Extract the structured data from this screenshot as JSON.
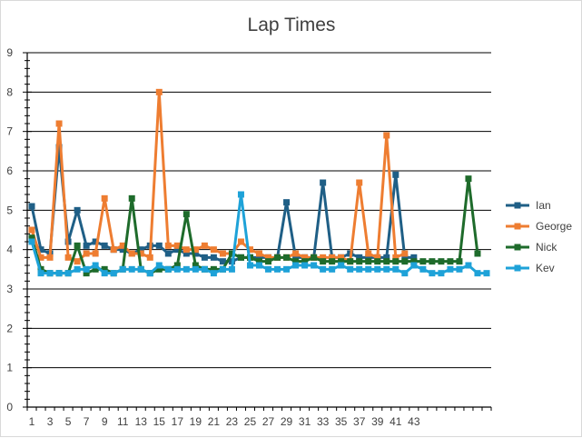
{
  "chart_data": {
    "type": "line",
    "title": "Lap Times",
    "xlabel": "",
    "ylabel": "",
    "ylim": [
      0,
      9
    ],
    "yticks": [
      "0",
      "1",
      "2",
      "3",
      "4",
      "5",
      "6",
      "7",
      "8",
      "9"
    ],
    "xticks": [
      "1",
      "3",
      "5",
      "7",
      "9",
      "11",
      "13",
      "15",
      "17",
      "19",
      "21",
      "23",
      "25",
      "27",
      "29",
      "31",
      "33",
      "35",
      "37",
      "39",
      "41",
      "43"
    ],
    "x_count": 51,
    "grid": "horizontal",
    "legend_position": "right",
    "series": [
      {
        "name": "Ian",
        "color": "#1f5f86",
        "values": [
          5.1,
          4.0,
          3.9,
          6.6,
          4.2,
          5.0,
          4.1,
          4.2,
          4.1,
          4.0,
          4.0,
          3.9,
          4.0,
          4.1,
          4.1,
          3.9,
          4.0,
          3.9,
          3.9,
          3.8,
          3.8,
          3.7,
          3.7,
          3.8,
          3.8,
          3.8,
          3.8,
          3.8,
          5.2,
          3.8,
          3.8,
          3.8,
          5.7,
          3.8,
          3.8,
          3.9,
          3.8,
          3.8,
          3.8,
          3.8,
          5.9,
          3.8,
          3.8
        ]
      },
      {
        "name": "George",
        "color": "#ee7d31",
        "values": [
          4.5,
          3.8,
          3.8,
          7.2,
          3.8,
          3.7,
          3.9,
          3.9,
          5.3,
          4.0,
          4.1,
          3.9,
          3.9,
          3.8,
          8.0,
          4.1,
          4.1,
          4.0,
          4.0,
          4.1,
          4.0,
          3.9,
          3.9,
          4.2,
          4.0,
          3.9,
          3.8,
          3.8,
          3.8,
          3.9,
          3.8,
          3.8,
          3.8,
          3.8,
          3.8,
          3.7,
          5.7,
          3.9,
          3.8,
          6.9,
          3.8,
          3.9
        ]
      },
      {
        "name": "Nick",
        "color": "#1e6b2b",
        "values": [
          4.3,
          3.5,
          3.4,
          3.4,
          3.4,
          4.1,
          3.4,
          3.5,
          3.5,
          3.4,
          3.5,
          5.3,
          3.5,
          3.4,
          3.5,
          3.5,
          3.6,
          4.9,
          3.6,
          3.5,
          3.5,
          3.5,
          3.9,
          3.8,
          3.8,
          3.7,
          3.7,
          3.8,
          3.8,
          3.7,
          3.7,
          3.8,
          3.7,
          3.7,
          3.7,
          3.7,
          3.7,
          3.7,
          3.7,
          3.7,
          3.7,
          3.7,
          3.7,
          3.7,
          3.7,
          3.7,
          3.7,
          3.7,
          5.8,
          3.9
        ]
      },
      {
        "name": "Kev",
        "color": "#1ea2d8",
        "values": [
          4.2,
          3.4,
          3.4,
          3.4,
          3.4,
          3.5,
          3.5,
          3.6,
          3.4,
          3.4,
          3.5,
          3.5,
          3.5,
          3.4,
          3.6,
          3.5,
          3.5,
          3.5,
          3.5,
          3.5,
          3.4,
          3.5,
          3.5,
          5.4,
          3.6,
          3.6,
          3.5,
          3.5,
          3.5,
          3.6,
          3.6,
          3.6,
          3.5,
          3.5,
          3.6,
          3.5,
          3.5,
          3.5,
          3.5,
          3.5,
          3.5,
          3.4,
          3.6,
          3.5,
          3.4,
          3.4,
          3.5,
          3.5,
          3.6,
          3.4,
          3.4
        ]
      }
    ]
  }
}
